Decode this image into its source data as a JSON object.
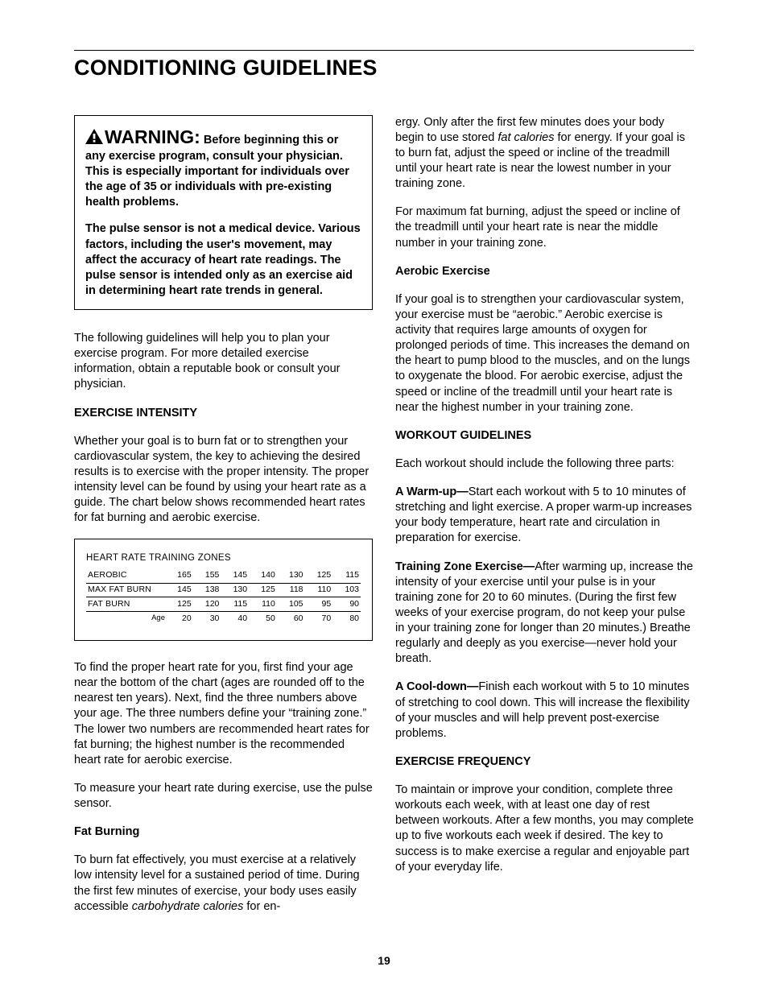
{
  "title": "CONDITIONING GUIDELINES",
  "page_number": "19",
  "warning": {
    "label": "WARNING:",
    "p1_after_label": " Before beginning this or any exercise program, consult your physician. This is especially important for individuals over the age of 35 or individuals with pre-existing health problems.",
    "p2": "The pulse sensor is not a medical device. Various factors, including the user's movement, may affect the accuracy of heart rate readings. The pulse sensor is intended only as an exercise aid in determining heart rate trends in general."
  },
  "left": {
    "intro": "The following guidelines will help you to plan your exercise program. For more detailed exercise information, obtain a reputable book or consult your physician.",
    "intensity_head": "EXERCISE INTENSITY",
    "intensity_p": "Whether your goal is to burn fat or to strengthen your cardiovascular system, the key to achieving the desired results is to exercise with the proper intensity. The proper intensity level can be found by using your heart rate as a guide. The chart below shows recommended heart rates for fat burning and aerobic exercise.",
    "chart": {
      "title": "HEART RATE TRAINING ZONES",
      "rows": [
        {
          "label": "AEROBIC",
          "vals": [
            "165",
            "155",
            "145",
            "140",
            "130",
            "125",
            "115"
          ]
        },
        {
          "label": "MAX FAT BURN",
          "vals": [
            "145",
            "138",
            "130",
            "125",
            "118",
            "110",
            "103"
          ]
        },
        {
          "label": "FAT BURN",
          "vals": [
            "125",
            "120",
            "115",
            "110",
            "105",
            "95",
            "90"
          ]
        }
      ],
      "age_label": "Age",
      "ages": [
        "20",
        "30",
        "40",
        "50",
        "60",
        "70",
        "80"
      ]
    },
    "after_chart_p1": "To find the proper heart rate for you, first find your age near the bottom of the chart (ages are rounded off to the nearest ten years). Next, find the three numbers above your age. The three numbers define your “training zone.” The lower two numbers are recommended heart rates for fat burning; the highest number is the recommended heart rate for aerobic exercise.",
    "after_chart_p2": "To measure your heart rate during exercise, use the pulse sensor.",
    "fat_head": "Fat Burning",
    "fat_p_pre": "To burn fat effectively, you must exercise at a relatively low intensity level for a sustained period of time. During the first few minutes of exercise, your body uses easily accessible ",
    "fat_p_em": "carbohydrate calories",
    "fat_p_post": " for en-"
  },
  "right": {
    "cont_pre": "ergy. Only after the first few minutes does your body begin to use stored ",
    "cont_em": "fat calories",
    "cont_post": " for energy. If your goal is to burn fat, adjust the speed or incline of the treadmill until your heart rate is near the lowest number in your training zone.",
    "max_fat_p": "For maximum fat burning, adjust the speed or incline of the treadmill until your heart rate is near the middle number in your training zone.",
    "aerobic_head": "Aerobic Exercise",
    "aerobic_p": "If your goal is to strengthen your cardiovascular system, your exercise must be “aerobic.” Aerobic exercise is activity that requires large amounts of oxygen for prolonged periods of time. This increases the demand on the heart to pump blood to the muscles, and on the lungs to oxygenate the blood. For aerobic exercise, adjust the speed or incline of the treadmill until your heart rate is near the highest number in your training zone.",
    "workout_head": "WORKOUT GUIDELINES",
    "workout_intro": "Each workout should include the following three parts:",
    "warmup_label": "A Warm-up—",
    "warmup_text": "Start each workout with 5 to 10 minutes of stretching and light exercise. A proper warm-up increases your body temperature, heart rate and circulation in preparation for exercise.",
    "tz_label": "Training Zone Exercise—",
    "tz_text": "After warming up, increase the intensity of your exercise until your pulse is in your training zone for 20 to 60 minutes. (During the first few weeks of your exercise program, do not keep your pulse in your training zone for longer than 20 minutes.) Breathe regularly and deeply as you exercise—never hold your breath.",
    "cool_label": "A Cool-down—",
    "cool_text": "Finish each workout with 5 to 10 minutes of stretching to cool down. This will increase the flexibility of your muscles and will help prevent post-exercise problems.",
    "freq_head": "EXERCISE FREQUENCY",
    "freq_p": "To maintain or improve your condition, complete three workouts each week, with at least one day of rest between workouts. After a few months, you may complete up to five workouts each week if desired. The key to success is to make exercise a regular and enjoyable part of your everyday life."
  }
}
